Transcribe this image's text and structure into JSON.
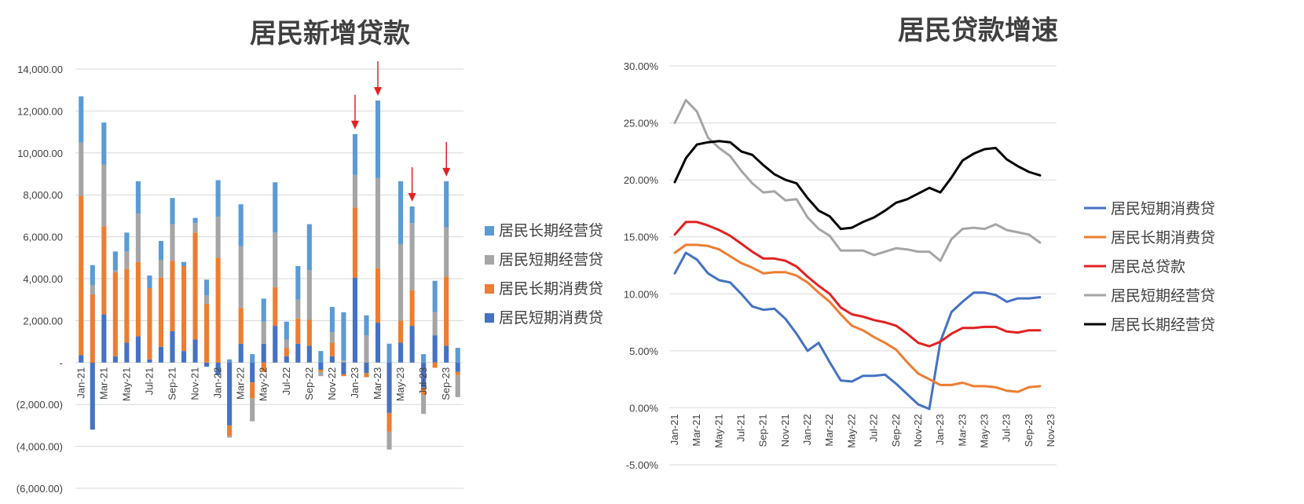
{
  "chart_data": [
    {
      "type": "bar",
      "stacked": true,
      "title": "居民新增贷款",
      "xlabel": "",
      "ylabel": "",
      "ylim": [
        -6000,
        14000
      ],
      "yticks": [
        {
          "v": 14000,
          "label": "14,000.00"
        },
        {
          "v": 12000,
          "label": "12,000.00"
        },
        {
          "v": 10000,
          "label": "10,000.00"
        },
        {
          "v": 8000,
          "label": "8,000.00"
        },
        {
          "v": 6000,
          "label": "6,000.00"
        },
        {
          "v": 4000,
          "label": "4,000.00"
        },
        {
          "v": 2000,
          "label": "2,000.00"
        },
        {
          "v": 0,
          "label": "-"
        },
        {
          "v": -2000,
          "label": "(2,000.00)"
        },
        {
          "v": -4000,
          "label": "(4,000.00)"
        },
        {
          "v": -6000,
          "label": "(6,000.00)"
        }
      ],
      "categories": [
        "Jan-21",
        "Feb-21",
        "Mar-21",
        "Apr-21",
        "May-21",
        "Jun-21",
        "Jul-21",
        "Aug-21",
        "Sep-21",
        "Oct-21",
        "Nov-21",
        "Dec-21",
        "Jan-22",
        "Feb-22",
        "Mar-22",
        "Apr-22",
        "May-22",
        "Jun-22",
        "Jul-22",
        "Aug-22",
        "Sep-22",
        "Oct-22",
        "Nov-22",
        "Dec-22",
        "Jan-23",
        "Feb-23",
        "Mar-23",
        "Apr-23",
        "May-23",
        "Jun-23",
        "Jul-23",
        "Aug-23",
        "Sep-23",
        "Oct-23"
      ],
      "tick_labels": [
        "Jan-21",
        "Mar-21",
        "May-21",
        "Jul-21",
        "Sep-21",
        "Nov-21",
        "Jan-22",
        "Mar-22",
        "May-22",
        "Jul-22",
        "Sep-22",
        "Nov-22",
        "Jan-23",
        "Mar-23",
        "May-23",
        "Jul-23",
        "Sep-23"
      ],
      "series": [
        {
          "name": "居民短期消费贷",
          "color": "#4472C4",
          "values": [
            350,
            -3200,
            2300,
            300,
            950,
            1250,
            150,
            750,
            1500,
            550,
            1100,
            -200,
            -600,
            -3000,
            900,
            -950,
            900,
            1750,
            300,
            900,
            800,
            -350,
            300,
            -550,
            4050,
            -500,
            1900,
            -2400,
            950,
            1750,
            -1200,
            1300,
            800,
            -450
          ]
        },
        {
          "name": "居民长期消费贷",
          "color": "#ED7D31",
          "values": [
            7600,
            3250,
            4200,
            4000,
            3500,
            3550,
            3400,
            3300,
            3350,
            4050,
            5100,
            2800,
            5000,
            -500,
            1700,
            -750,
            -450,
            1850,
            400,
            1200,
            1250,
            -100,
            650,
            -100,
            3350,
            -200,
            2600,
            -900,
            1050,
            1700,
            -350,
            -250,
            3300,
            -150
          ]
        },
        {
          "name": "居民短期经营贷",
          "color": "#A5A5A5",
          "values": [
            2550,
            450,
            2950,
            100,
            850,
            2300,
            0,
            850,
            1750,
            0,
            450,
            400,
            1950,
            -80,
            2950,
            -1100,
            1050,
            2600,
            400,
            900,
            2350,
            -200,
            500,
            100,
            1550,
            1300,
            4300,
            -850,
            3650,
            3200,
            -900,
            1100,
            2350,
            -1050
          ]
        },
        {
          "name": "居民长期经营贷",
          "color": "#5B9BD5",
          "values": [
            2200,
            950,
            2000,
            900,
            900,
            1550,
            600,
            900,
            1250,
            200,
            250,
            750,
            1750,
            150,
            2000,
            400,
            1100,
            2400,
            850,
            1600,
            2200,
            550,
            1200,
            2300,
            1950,
            950,
            3700,
            900,
            3000,
            800,
            400,
            1500,
            2200,
            700
          ]
        }
      ],
      "annotations": [
        "arrow@Jan-23",
        "arrow@Mar-23",
        "arrow@Jun-23",
        "arrow@Sep-23"
      ],
      "legend_position": "right",
      "legend_order": [
        "居民长期经营贷",
        "居民短期经营贷",
        "居民长期消费贷",
        "居民短期消费贷"
      ],
      "grid": "horizontal"
    },
    {
      "type": "line",
      "title": "居民贷款增速",
      "xlabel": "",
      "ylabel": "",
      "ylim": [
        -0.05,
        0.3
      ],
      "yticks": [
        {
          "v": 0.3,
          "label": "30.00%"
        },
        {
          "v": 0.25,
          "label": "25.00%"
        },
        {
          "v": 0.2,
          "label": "20.00%"
        },
        {
          "v": 0.15,
          "label": "15.00%"
        },
        {
          "v": 0.1,
          "label": "10.00%"
        },
        {
          "v": 0.05,
          "label": "5.00%"
        },
        {
          "v": 0.0,
          "label": "0.00%"
        },
        {
          "v": -0.05,
          "label": "-5.00%"
        }
      ],
      "x": [
        "Jan-21",
        "Feb-21",
        "Mar-21",
        "Apr-21",
        "May-21",
        "Jun-21",
        "Jul-21",
        "Aug-21",
        "Sep-21",
        "Oct-21",
        "Nov-21",
        "Dec-21",
        "Jan-22",
        "Feb-22",
        "Mar-22",
        "Apr-22",
        "May-22",
        "Jun-22",
        "Jul-22",
        "Aug-22",
        "Sep-22",
        "Oct-22",
        "Nov-22",
        "Dec-22",
        "Jan-23",
        "Feb-23",
        "Mar-23",
        "Apr-23",
        "May-23",
        "Jun-23",
        "Jul-23",
        "Aug-23",
        "Sep-23",
        "Oct-23",
        "Nov-23"
      ],
      "tick_labels": [
        "Jan-21",
        "Mar-21",
        "May-21",
        "Jul-21",
        "Sep-21",
        "Nov-21",
        "Jan-22",
        "Mar-22",
        "May-22",
        "Jul-22",
        "Sep-22",
        "Nov-22",
        "Jan-23",
        "Mar-23",
        "May-23",
        "Jul-23",
        "Sep-23",
        "Nov-23"
      ],
      "series": [
        {
          "name": "居民短期消费贷",
          "color": "#4472C4",
          "values": [
            0.118,
            0.136,
            0.13,
            0.118,
            0.112,
            0.11,
            0.1,
            0.089,
            0.086,
            0.087,
            0.078,
            0.065,
            0.05,
            0.057,
            0.04,
            0.024,
            0.023,
            0.028,
            0.028,
            0.029,
            0.021,
            0.012,
            0.003,
            -0.001,
            0.058,
            0.084,
            0.093,
            0.101,
            0.101,
            0.099,
            0.093,
            0.096,
            0.096,
            0.097,
            null
          ]
        },
        {
          "name": "居民长期消费贷",
          "color": "#ED7D31",
          "values": [
            0.136,
            0.143,
            0.143,
            0.142,
            0.139,
            0.133,
            0.127,
            0.123,
            0.118,
            0.119,
            0.119,
            0.116,
            0.11,
            0.101,
            0.093,
            0.082,
            0.072,
            0.068,
            0.062,
            0.057,
            0.051,
            0.04,
            0.03,
            0.025,
            0.02,
            0.02,
            0.022,
            0.019,
            0.019,
            0.018,
            0.015,
            0.014,
            0.018,
            0.019,
            null
          ]
        },
        {
          "name": "居民总贷款",
          "color": "#E32121",
          "values": [
            0.152,
            0.163,
            0.163,
            0.16,
            0.156,
            0.151,
            0.144,
            0.137,
            0.131,
            0.131,
            0.129,
            0.124,
            0.115,
            0.107,
            0.1,
            0.088,
            0.082,
            0.08,
            0.077,
            0.075,
            0.072,
            0.065,
            0.057,
            0.054,
            0.058,
            0.065,
            0.07,
            0.07,
            0.071,
            0.071,
            0.067,
            0.066,
            0.068,
            0.068,
            null
          ]
        },
        {
          "name": "居民短期经营贷",
          "color": "#A5A5A5",
          "values": [
            0.25,
            0.27,
            0.26,
            0.237,
            0.228,
            0.221,
            0.208,
            0.197,
            0.189,
            0.19,
            0.182,
            0.183,
            0.167,
            0.157,
            0.151,
            0.138,
            0.138,
            0.138,
            0.134,
            0.137,
            0.14,
            0.139,
            0.137,
            0.137,
            0.129,
            0.148,
            0.157,
            0.158,
            0.157,
            0.161,
            0.156,
            0.154,
            0.152,
            0.145,
            null
          ]
        },
        {
          "name": "居民长期经营贷",
          "color": "#000000",
          "values": [
            0.198,
            0.219,
            0.231,
            0.233,
            0.234,
            0.233,
            0.225,
            0.222,
            0.213,
            0.205,
            0.2,
            0.197,
            0.184,
            0.173,
            0.168,
            0.157,
            0.158,
            0.163,
            0.167,
            0.173,
            0.18,
            0.183,
            0.188,
            0.193,
            0.189,
            0.202,
            0.217,
            0.223,
            0.227,
            0.228,
            0.218,
            0.212,
            0.207,
            0.204,
            null
          ]
        }
      ],
      "legend_position": "right",
      "grid": "horizontal"
    }
  ]
}
